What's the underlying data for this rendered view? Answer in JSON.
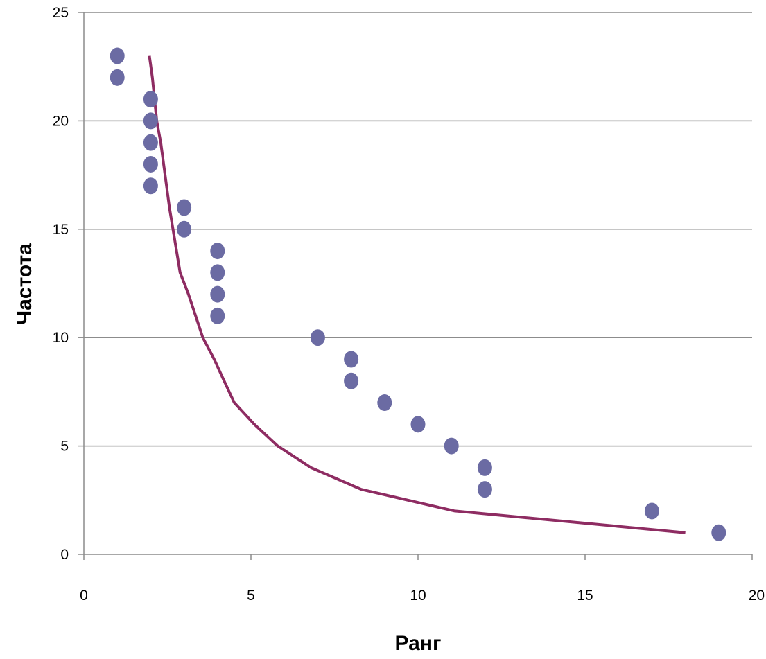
{
  "chart_data": {
    "type": "scatter",
    "title": "",
    "xlabel": "Ранг",
    "ylabel": "Частота",
    "xlim": [
      0,
      20
    ],
    "ylim": [
      0,
      25
    ],
    "xticks": [
      0,
      5,
      10,
      15,
      20
    ],
    "yticks": [
      0,
      5,
      10,
      15,
      20,
      25
    ],
    "grid": "horizontal",
    "legend": "none",
    "series": [
      {
        "kind": "points",
        "color": "#6b6ba3",
        "x": [
          1,
          1,
          2,
          2,
          2,
          2,
          2,
          3,
          3,
          4,
          4,
          4,
          4,
          7,
          8,
          8,
          9,
          10,
          11,
          12,
          12,
          17,
          19
        ],
        "y": [
          23,
          22,
          21,
          20,
          19,
          18,
          17,
          16,
          15,
          14,
          13,
          12,
          11,
          10,
          9,
          8,
          7,
          6,
          5,
          4,
          3,
          2,
          1
        ]
      },
      {
        "kind": "line",
        "color": "#8e2c62",
        "x": [
          1.96,
          2.05,
          2.18,
          2.3,
          2.56,
          2.88,
          3.13,
          3.56,
          3.9,
          4.2,
          4.5,
          5.1,
          5.8,
          6.8,
          8.3,
          11.1,
          18.0
        ],
        "y": [
          23,
          22,
          20,
          19,
          16,
          13,
          12,
          10,
          9,
          8,
          7,
          6,
          5,
          4,
          3,
          2,
          1
        ]
      }
    ]
  }
}
